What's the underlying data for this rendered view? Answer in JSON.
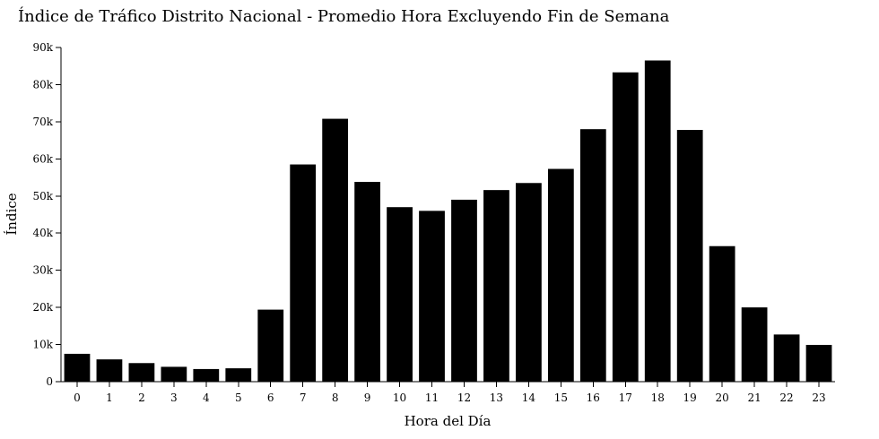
{
  "chart_data": {
    "type": "bar",
    "title": "Índice de Tráfico Distrito Nacional - Promedio Hora Excluyendo Fin de Semana",
    "xlabel": "Hora del Día",
    "ylabel": "Índice",
    "categories": [
      "0",
      "1",
      "2",
      "3",
      "4",
      "5",
      "6",
      "7",
      "8",
      "9",
      "10",
      "11",
      "12",
      "13",
      "14",
      "15",
      "16",
      "17",
      "18",
      "19",
      "20",
      "21",
      "22",
      "23"
    ],
    "values": [
      7500,
      6000,
      5000,
      4000,
      3400,
      3600,
      19400,
      58500,
      70800,
      53800,
      47000,
      46000,
      49000,
      51600,
      53500,
      57300,
      68000,
      83300,
      86500,
      67800,
      36500,
      20000,
      12700,
      9900
    ],
    "ylim": [
      0,
      90000
    ],
    "yticks": [
      0,
      10000,
      20000,
      30000,
      40000,
      50000,
      60000,
      70000,
      80000,
      90000
    ],
    "ytick_labels": [
      "0",
      "10k",
      "20k",
      "30k",
      "40k",
      "50k",
      "60k",
      "70k",
      "80k",
      "90k"
    ],
    "bar_color": "#000000",
    "grid": false,
    "legend": "none"
  }
}
